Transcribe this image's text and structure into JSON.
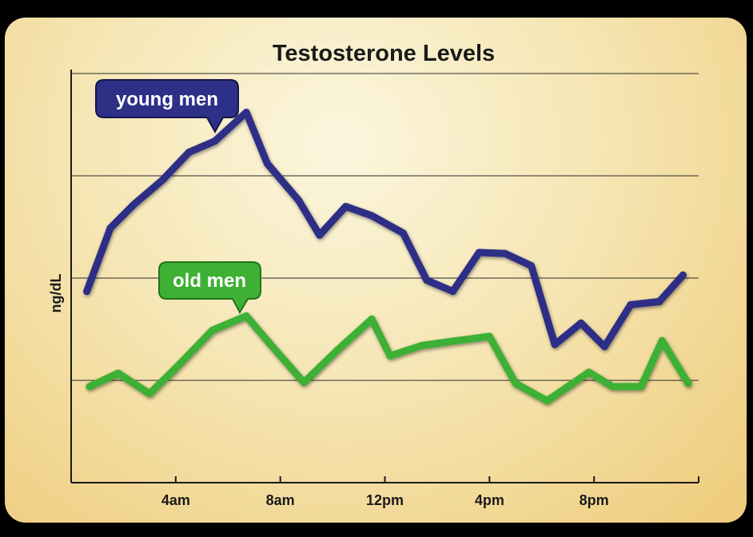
{
  "chart_data": {
    "type": "line",
    "title": "Testosterone Levels",
    "xlabel": "",
    "ylabel": "ng/dL",
    "grid": true,
    "x_range": [
      0,
      24
    ],
    "ylim": [
      0,
      4
    ],
    "x_ticks": [
      {
        "value": 4,
        "label": "4am"
      },
      {
        "value": 8,
        "label": "8am"
      },
      {
        "value": 12,
        "label": "12pm"
      },
      {
        "value": 16,
        "label": "4pm"
      },
      {
        "value": 20,
        "label": "8pm"
      }
    ],
    "y_gridlines": [
      1,
      2,
      3,
      4
    ],
    "series": [
      {
        "name": "young men",
        "color": "#2e2f86",
        "points": [
          [
            0.6,
            1.87
          ],
          [
            1.5,
            2.49
          ],
          [
            2.4,
            2.72
          ],
          [
            3.5,
            2.96
          ],
          [
            4.5,
            3.23
          ],
          [
            5.5,
            3.34
          ],
          [
            6.7,
            3.62
          ],
          [
            7.5,
            3.12
          ],
          [
            8.7,
            2.76
          ],
          [
            9.5,
            2.42
          ],
          [
            10.5,
            2.7
          ],
          [
            11.5,
            2.61
          ],
          [
            12.7,
            2.44
          ],
          [
            13.6,
            1.98
          ],
          [
            14.6,
            1.87
          ],
          [
            15.6,
            2.25
          ],
          [
            16.6,
            2.24
          ],
          [
            17.6,
            2.12
          ],
          [
            18.5,
            1.35
          ],
          [
            19.5,
            1.56
          ],
          [
            20.4,
            1.33
          ],
          [
            21.4,
            1.74
          ],
          [
            22.5,
            1.77
          ],
          [
            23.4,
            2.03
          ]
        ]
      },
      {
        "name": "old men",
        "color": "#3eb034",
        "points": [
          [
            0.7,
            0.94
          ],
          [
            1.8,
            1.07
          ],
          [
            3.0,
            0.87
          ],
          [
            4.0,
            1.12
          ],
          [
            5.4,
            1.49
          ],
          [
            6.7,
            1.63
          ],
          [
            7.7,
            1.33
          ],
          [
            8.9,
            0.98
          ],
          [
            10.2,
            1.3
          ],
          [
            11.5,
            1.6
          ],
          [
            12.2,
            1.24
          ],
          [
            13.4,
            1.34
          ],
          [
            14.8,
            1.39
          ],
          [
            16.0,
            1.43
          ],
          [
            17.0,
            0.97
          ],
          [
            18.2,
            0.8
          ],
          [
            19.8,
            1.08
          ],
          [
            20.7,
            0.94
          ],
          [
            21.8,
            0.94
          ],
          [
            22.6,
            1.39
          ],
          [
            23.6,
            0.97
          ]
        ]
      }
    ]
  }
}
